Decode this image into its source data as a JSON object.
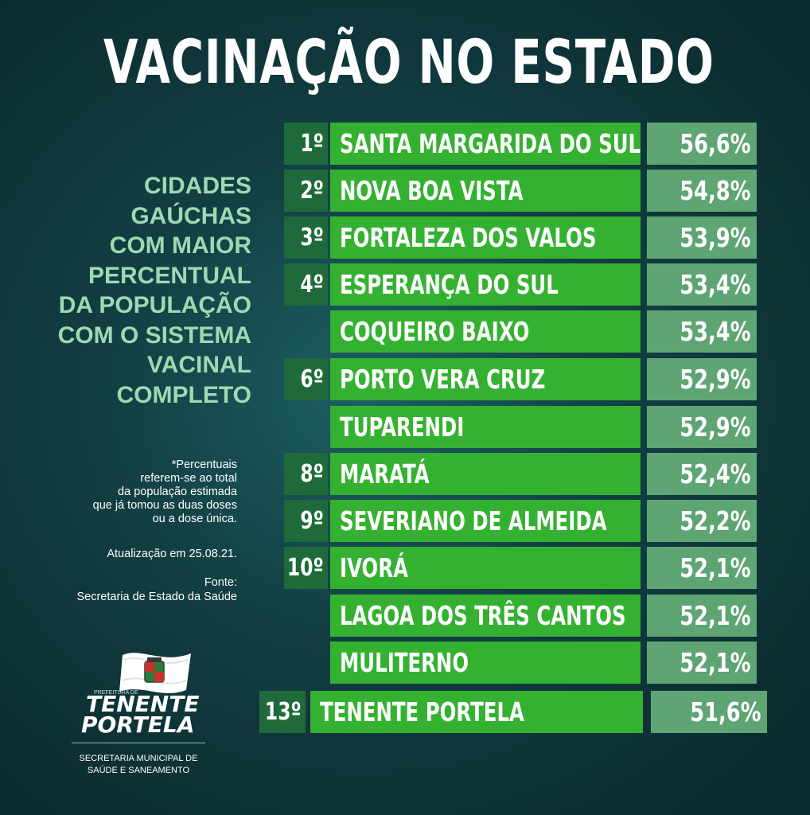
{
  "title": "VACINAÇÃO NO ESTADO",
  "headline": [
    "CIDADES",
    "GAÚCHAS",
    "COM MAIOR",
    "PERCENTUAL",
    "DA POPULAÇÃO",
    "COM O SISTEMA",
    "VACINAL",
    "COMPLETO"
  ],
  "note": [
    "*Percentuais",
    "referem-se ao total",
    "da população estimada",
    "que já tomou as duas doses",
    "ou a dose única."
  ],
  "update": "Atualização em 25.08.21.",
  "source": [
    "Fonte:",
    "Secretaria de Estado da Saúde"
  ],
  "ranking": [
    {
      "rank": "1º",
      "city": "SANTA MARGARIDA DO SUL",
      "pct": "56,6%",
      "value": 56.6
    },
    {
      "rank": "2º",
      "city": "NOVA BOA VISTA",
      "pct": "54,8%",
      "value": 54.8
    },
    {
      "rank": "3º",
      "city": "FORTALEZA DOS VALOS",
      "pct": "53,9%",
      "value": 53.9
    },
    {
      "rank": "4º",
      "city": "ESPERANÇA DO SUL",
      "pct": "53,4%",
      "value": 53.4
    },
    {
      "rank": "",
      "city": "COQUEIRO BAIXO",
      "pct": "53,4%",
      "value": 53.4
    },
    {
      "rank": "6º",
      "city": "PORTO VERA CRUZ",
      "pct": "52,9%",
      "value": 52.9
    },
    {
      "rank": "",
      "city": "TUPARENDI",
      "pct": "52,9%",
      "value": 52.9
    },
    {
      "rank": "8º",
      "city": "MARATÁ",
      "pct": "52,4%",
      "value": 52.4
    },
    {
      "rank": "9º",
      "city": "SEVERIANO DE ALMEIDA",
      "pct": "52,2%",
      "value": 52.2
    },
    {
      "rank": "10º",
      "city": "IVORÁ",
      "pct": "52,1%",
      "value": 52.1
    },
    {
      "rank": "",
      "city": "LAGOA DOS TRÊS CANTOS",
      "pct": "52,1%",
      "value": 52.1
    },
    {
      "rank": "",
      "city": "MULITERNO",
      "pct": "52,1%",
      "value": 52.1
    },
    {
      "rank": "13º",
      "city": "TENENTE PORTELA",
      "pct": "51,6%",
      "value": 51.6
    }
  ],
  "brand": {
    "tiny": "PREFEITURA DE",
    "line1": "TENENTE",
    "line2": "PORTELA",
    "sub": [
      "SECRETARIA MUNICIPAL DE",
      "SAÚDE E SANEAMENTO"
    ],
    "logo_icon": "flag-icon"
  },
  "colors": {
    "rank_bg": "#1e6a3a",
    "city_bg": "#35b131",
    "pct_bg": "#5ea573",
    "headline": "#9ed9b2"
  }
}
